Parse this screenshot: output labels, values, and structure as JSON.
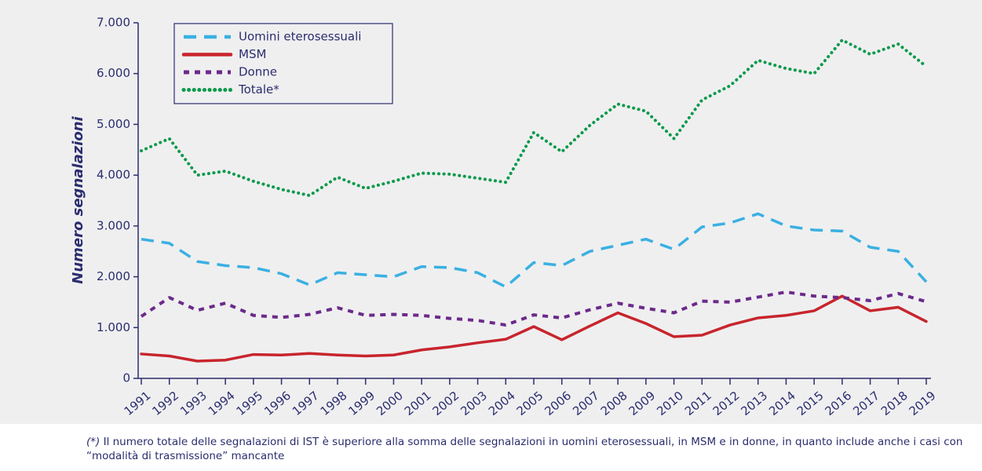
{
  "chart_data": {
    "type": "line",
    "y_label": "Numero segnalazioni",
    "categories": [
      "1991",
      "1992",
      "1993",
      "1994",
      "1995",
      "1996",
      "1997",
      "1998",
      "1999",
      "2000",
      "2001",
      "2002",
      "2003",
      "2004",
      "2005",
      "2006",
      "2007",
      "2008",
      "2009",
      "2010",
      "2011",
      "2012",
      "2013",
      "2014",
      "2015",
      "2016",
      "2017",
      "2018",
      "2019"
    ],
    "series": [
      {
        "name": "Uomini eterosessuali",
        "color": "#3ab0e2",
        "style": "dashed",
        "values": [
          2740,
          2660,
          2300,
          2220,
          2180,
          2060,
          1840,
          2080,
          2040,
          2000,
          2200,
          2180,
          2080,
          1800,
          2280,
          2220,
          2500,
          2620,
          2740,
          2540,
          2980,
          3060,
          3240,
          3000,
          2920,
          2900,
          2580,
          2500,
          1900
        ]
      },
      {
        "name": "MSM",
        "color": "#c8252c",
        "style": "solid",
        "values": [
          480,
          440,
          340,
          360,
          470,
          460,
          490,
          460,
          440,
          460,
          560,
          620,
          700,
          770,
          1020,
          760,
          1030,
          1290,
          1080,
          820,
          850,
          1050,
          1190,
          1240,
          1330,
          1620,
          1330,
          1400,
          1120
        ]
      },
      {
        "name": "Donne",
        "color": "#6c2a8a",
        "style": "short-dashed",
        "values": [
          1220,
          1590,
          1340,
          1480,
          1240,
          1200,
          1260,
          1390,
          1240,
          1260,
          1240,
          1180,
          1140,
          1050,
          1250,
          1190,
          1350,
          1480,
          1380,
          1290,
          1520,
          1500,
          1600,
          1700,
          1620,
          1590,
          1530,
          1670,
          1510
        ]
      },
      {
        "name": "Totale*",
        "color": "#0c9a4a",
        "style": "dotted",
        "values": [
          4480,
          4720,
          4000,
          4080,
          3880,
          3720,
          3600,
          3960,
          3740,
          3880,
          4040,
          4020,
          3940,
          3860,
          4840,
          4460,
          4980,
          5400,
          5260,
          4720,
          5480,
          5760,
          6260,
          6100,
          6000,
          6660,
          6380,
          6580,
          6140
        ]
      }
    ],
    "ylim": [
      0,
      7000
    ],
    "yticks": [
      0,
      {
        "value": 1000,
        "label": "1.000"
      },
      {
        "value": 2000,
        "label": "2.000"
      },
      {
        "value": 3000,
        "label": "3.000"
      },
      {
        "value": 4000,
        "label": "4.000"
      },
      {
        "value": 5000,
        "label": "5.000"
      },
      {
        "value": 6000,
        "label": "6.000"
      },
      {
        "value": 7000,
        "label": "7.000"
      }
    ],
    "legend": "upper left",
    "background": "#efeff0",
    "footnote_marker": "(*)",
    "footnote": "Il numero totale delle segnalazioni di IST è superiore alla somma delle segnalazioni in uomini eterosessuali, in MSM e in donne, in quanto include anche i casi con “modalità di trasmissione” mancante"
  }
}
